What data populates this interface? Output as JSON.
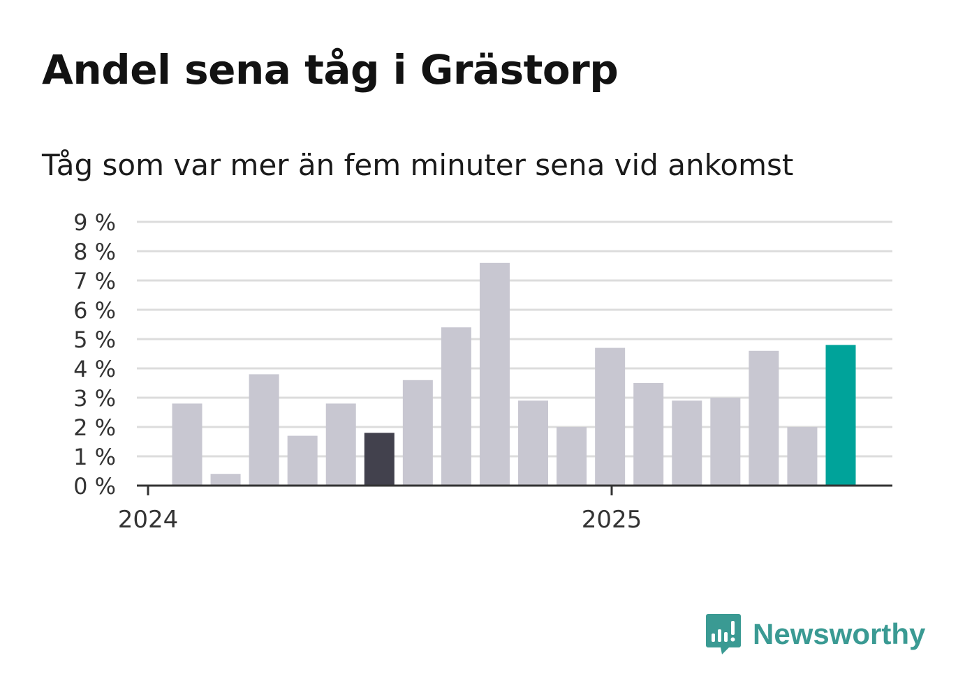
{
  "title": "Andel sena tåg i Grästorp",
  "subtitle": "Tåg som var mer än fem minuter sena vid ankomst",
  "brand": {
    "name": "Newsworthy"
  },
  "colors": {
    "bar_default": "#c8c7d1",
    "bar_highlight_dark": "#42414d",
    "bar_highlight_current": "#00a39a",
    "grid": "#dcdcdc",
    "axis": "#333333",
    "text": "#333333",
    "brand": "#3a9a93"
  },
  "chart_data": {
    "type": "bar",
    "y_axis": {
      "ticks": [
        "0 %",
        "1 %",
        "2 %",
        "3 %",
        "4 %",
        "5 %",
        "6 %",
        "7 %",
        "8 %",
        "9 %"
      ],
      "ylim": [
        0,
        9
      ],
      "unit": "%"
    },
    "x_axis": {
      "tick_labels": [
        "2024",
        "2025"
      ]
    },
    "grid": true,
    "series": [
      {
        "values": [
          2.8,
          0.4,
          3.8,
          1.7,
          2.8,
          1.8,
          3.6,
          5.4,
          7.6,
          2.9,
          2.0,
          4.7,
          3.5,
          2.9,
          3.0,
          4.6,
          2.0,
          4.8
        ],
        "highlights": {
          "5": "dark",
          "17": "current"
        }
      }
    ]
  }
}
